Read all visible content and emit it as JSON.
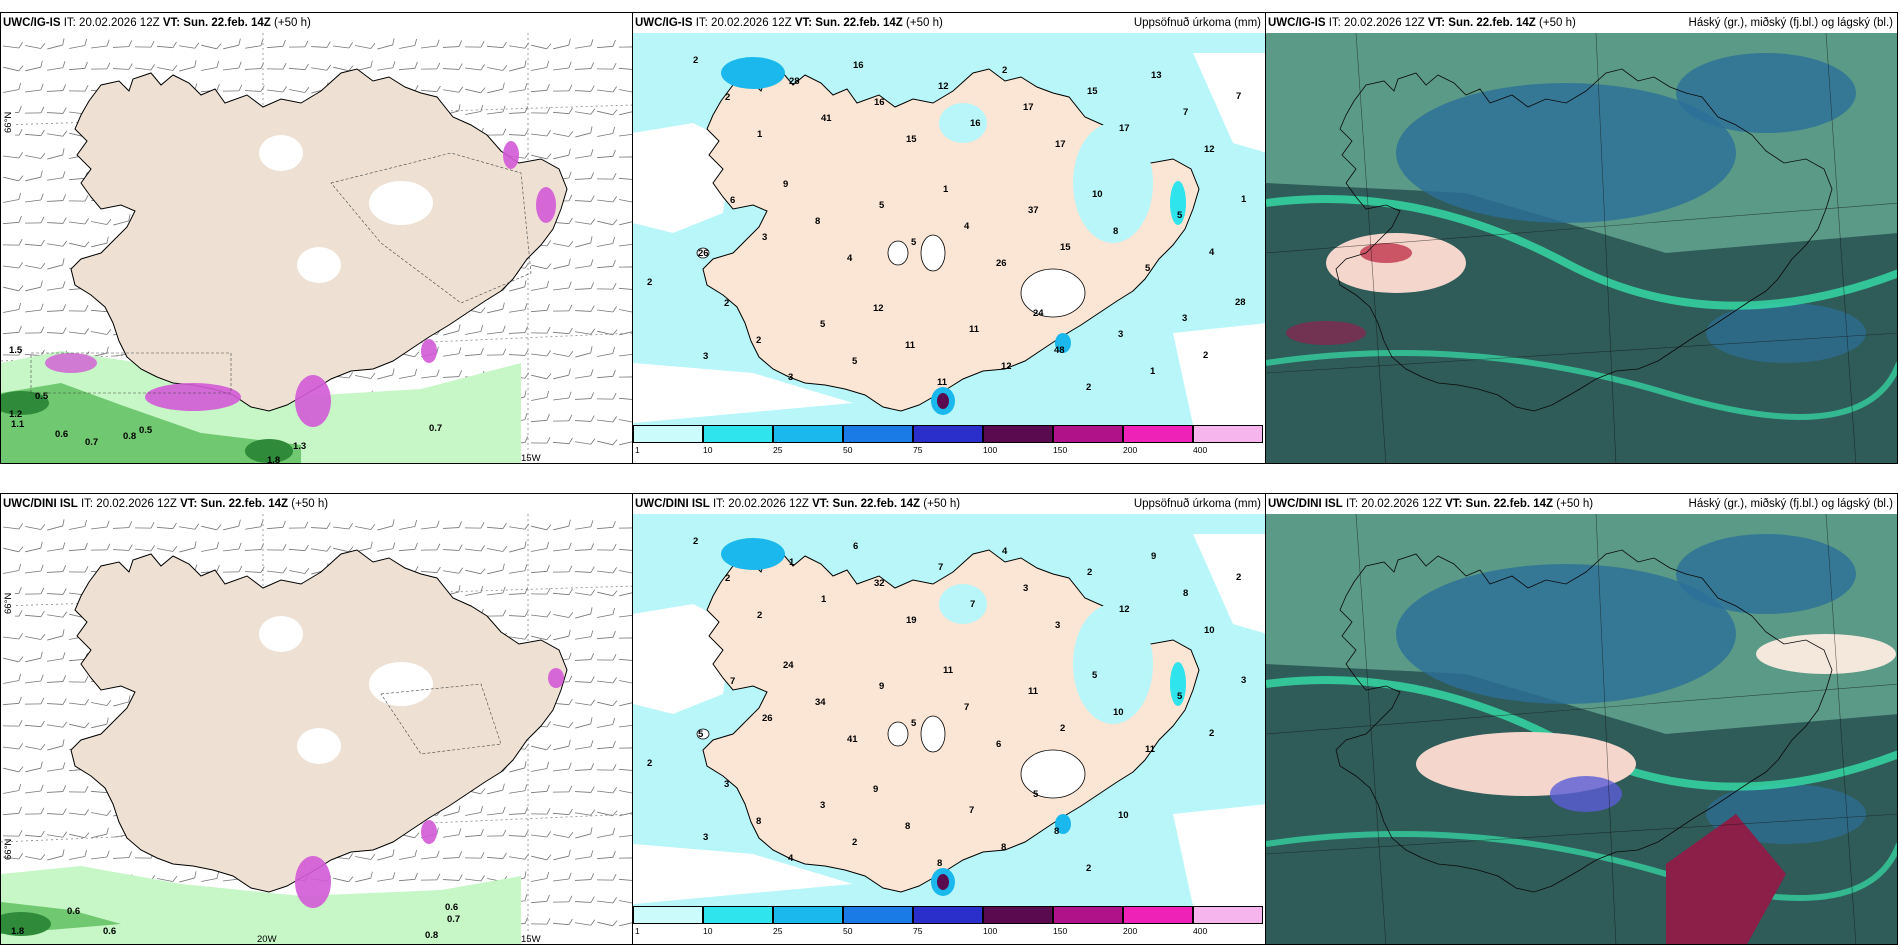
{
  "panels": [
    {
      "id": "top-left",
      "model": "UWC/IG-IS",
      "it_label": "IT:",
      "it_value": "20.02.2026 12Z",
      "vt_label": "VT:",
      "vt_value": "Sun. 22.feb. 14Z",
      "lead": "(+50 h)",
      "right_title": ""
    },
    {
      "id": "top-mid",
      "model": "UWC/IG-IS",
      "it_label": "IT:",
      "it_value": "20.02.2026 12Z",
      "vt_label": "VT:",
      "vt_value": "Sun. 22.feb. 14Z",
      "lead": "(+50 h)",
      "right_title": "Uppsöfnuð úrkoma (mm)"
    },
    {
      "id": "top-right",
      "model": "UWC/IG-IS",
      "it_label": "IT:",
      "it_value": "20.02.2026 12Z",
      "vt_label": "VT:",
      "vt_value": "Sun. 22.feb. 14Z",
      "lead": "(+50 h)",
      "right_title": "Háský (gr.), miðský (fj.bl.) og lágský (bl.)"
    },
    {
      "id": "bottom-left",
      "model": "UWC/DINI ISL",
      "it_label": "IT:",
      "it_value": "20.02.2026 12Z",
      "vt_label": "VT:",
      "vt_value": "Sun. 22.feb. 14Z",
      "lead": "(+50 h)",
      "right_title": ""
    },
    {
      "id": "bottom-mid",
      "model": "UWC/DINI ISL",
      "it_label": "IT:",
      "it_value": "20.02.2026 12Z",
      "vt_label": "VT:",
      "vt_value": "Sun. 22.feb. 14Z",
      "lead": "(+50 h)",
      "right_title": "Uppsöfnuð úrkoma (mm)"
    },
    {
      "id": "bottom-right",
      "model": "UWC/DINI ISL",
      "it_label": "IT:",
      "it_value": "20.02.2026 12Z",
      "vt_label": "VT:",
      "vt_value": "Sun. 22.feb. 14Z",
      "lead": "(+50 h)",
      "right_title": "Háský (gr.), miðský (fj.bl.) og lágský (bl.)"
    }
  ],
  "colorbar": {
    "ticks": [
      "1",
      "10",
      "25",
      "50",
      "75",
      "100",
      "150",
      "200",
      "400"
    ],
    "colors": [
      "#ccfbfb",
      "#2fe4ec",
      "#1ab8ec",
      "#1a7ae6",
      "#2a2fcb",
      "#5a0a4f",
      "#b0128a",
      "#ee22b6",
      "#f7b5ee"
    ]
  },
  "axis_labels": {
    "lat_66": "66°N",
    "lon_20w": "20W",
    "lon_15w": "15W"
  },
  "precip_labels_top": [
    "2",
    "2",
    "1",
    "28",
    "41",
    "16",
    "16",
    "15",
    "12",
    "16",
    "2",
    "17",
    "17",
    "15",
    "17",
    "13",
    "7",
    "12",
    "7",
    "26",
    "6",
    "3",
    "9",
    "8",
    "4",
    "5",
    "5",
    "1",
    "4",
    "26",
    "37",
    "15",
    "10",
    "8",
    "5",
    "5",
    "4",
    "1",
    "3",
    "2",
    "2",
    "3",
    "5",
    "5",
    "12",
    "11",
    "11",
    "11",
    "12",
    "24",
    "48",
    "2",
    "3",
    "1",
    "3",
    "2",
    "28"
  ],
  "precip_labels_bottom": [
    "2",
    "2",
    "2",
    "1",
    "1",
    "6",
    "32",
    "19",
    "7",
    "7",
    "4",
    "3",
    "3",
    "2",
    "12",
    "9",
    "8",
    "10",
    "2",
    "5",
    "7",
    "26",
    "24",
    "34",
    "41",
    "9",
    "5",
    "11",
    "7",
    "6",
    "11",
    "2",
    "5",
    "10",
    "11",
    "5",
    "2",
    "3",
    "3",
    "3",
    "8",
    "4",
    "3",
    "2",
    "9",
    "8",
    "8",
    "7",
    "8",
    "5",
    "8",
    "2",
    "10"
  ],
  "wind_values_top": [
    "1.5",
    "0.5",
    "1.2",
    "1.1",
    "0.6",
    "0.7",
    "0.8",
    "0.5",
    "1.3",
    "1.8",
    "0.7"
  ],
  "wind_values_bottom": [
    "0.6",
    "0.6",
    "1.8",
    "0.6",
    "0.7",
    "0.8"
  ]
}
